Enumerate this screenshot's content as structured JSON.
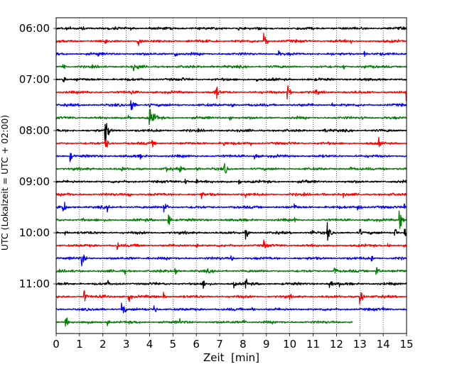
{
  "chart_data": {
    "type": "line",
    "title": "",
    "xlabel": "Zeit  [min]",
    "ylabel": "UTC (Lokalzeit = UTC + 02:00)",
    "xlim": [
      0,
      15
    ],
    "x_ticks": [
      "0",
      "1",
      "2",
      "3",
      "4",
      "5",
      "6",
      "7",
      "8",
      "9",
      "10",
      "11",
      "12",
      "13",
      "14",
      "15"
    ],
    "y_ticks": [
      "06:00",
      "07:00",
      "08:00",
      "09:00",
      "10:00",
      "11:00"
    ],
    "grid": "vertical dotted",
    "colors": [
      "#000000",
      "#ff0000",
      "#0000ff",
      "#008000"
    ],
    "series": [
      {
        "start": "06:00",
        "color": "#000000",
        "end_min": 15,
        "events": [
          [
            1.1,
            4
          ],
          [
            3.2,
            3
          ],
          [
            7.8,
            3
          ],
          [
            10.3,
            3
          ],
          [
            12.7,
            3
          ]
        ]
      },
      {
        "start": "06:15",
        "color": "#ff0000",
        "end_min": 15,
        "events": [
          [
            2.1,
            5
          ],
          [
            3.5,
            8
          ],
          [
            5.6,
            4
          ],
          [
            8.9,
            14
          ],
          [
            12.6,
            4
          ]
        ]
      },
      {
        "start": "06:30",
        "color": "#0000ff",
        "end_min": 15,
        "events": [
          [
            1.8,
            4
          ],
          [
            5.1,
            7
          ],
          [
            9.5,
            6
          ],
          [
            13.2,
            4
          ]
        ]
      },
      {
        "start": "06:45",
        "color": "#008000",
        "end_min": 15,
        "events": [
          [
            0.3,
            7
          ],
          [
            3.3,
            6
          ],
          [
            3.5,
            5
          ],
          [
            6.6,
            4
          ],
          [
            12.3,
            5
          ],
          [
            13.2,
            4
          ]
        ]
      },
      {
        "start": "07:00",
        "color": "#000000",
        "end_min": 15,
        "events": [
          [
            0.3,
            6
          ],
          [
            0.9,
            4
          ],
          [
            5.4,
            4
          ],
          [
            8.6,
            3
          ]
        ]
      },
      {
        "start": "07:15",
        "color": "#ff0000",
        "end_min": 15,
        "events": [
          [
            1.3,
            4
          ],
          [
            3.2,
            4
          ],
          [
            6.8,
            16
          ],
          [
            9.9,
            14
          ],
          [
            11.1,
            7
          ],
          [
            15.0,
            14
          ]
        ]
      },
      {
        "start": "07:30",
        "color": "#0000ff",
        "end_min": 15,
        "events": [
          [
            3.2,
            14
          ],
          [
            4.0,
            4
          ],
          [
            7.5,
            4
          ],
          [
            11.8,
            4
          ]
        ]
      },
      {
        "start": "07:45",
        "color": "#008000",
        "end_min": 15,
        "events": [
          [
            3.1,
            5
          ],
          [
            4.0,
            18
          ],
          [
            4.2,
            12
          ],
          [
            7.4,
            6
          ],
          [
            13.1,
            4
          ]
        ]
      },
      {
        "start": "08:00",
        "color": "#000000",
        "end_min": 15,
        "events": [
          [
            2.1,
            18
          ],
          [
            2.2,
            10
          ],
          [
            11.5,
            5
          ]
        ]
      },
      {
        "start": "08:15",
        "color": "#ff0000",
        "end_min": 15,
        "events": [
          [
            2.1,
            12
          ],
          [
            4.1,
            6
          ],
          [
            7.2,
            5
          ],
          [
            8.3,
            6
          ],
          [
            13.8,
            7
          ]
        ]
      },
      {
        "start": "08:30",
        "color": "#0000ff",
        "end_min": 15,
        "events": [
          [
            0.6,
            7
          ],
          [
            3.6,
            4
          ],
          [
            8.5,
            7
          ],
          [
            13.6,
            3
          ]
        ]
      },
      {
        "start": "08:45",
        "color": "#008000",
        "end_min": 15,
        "events": [
          [
            2.8,
            5
          ],
          [
            4.7,
            7
          ],
          [
            5.3,
            6
          ],
          [
            6.0,
            6
          ],
          [
            7.2,
            10
          ],
          [
            12.6,
            4
          ],
          [
            14.0,
            5
          ]
        ]
      },
      {
        "start": "09:00",
        "color": "#000000",
        "end_min": 15,
        "events": [
          [
            5.5,
            6
          ],
          [
            6.0,
            4
          ],
          [
            7.8,
            5
          ],
          [
            10.7,
            5
          ]
        ]
      },
      {
        "start": "09:15",
        "color": "#ff0000",
        "end_min": 15,
        "events": [
          [
            0.5,
            5
          ],
          [
            3.1,
            5
          ],
          [
            6.2,
            7
          ],
          [
            8.1,
            5
          ],
          [
            11.4,
            4
          ],
          [
            12.3,
            4
          ]
        ]
      },
      {
        "start": "09:30",
        "color": "#0000ff",
        "end_min": 15,
        "events": [
          [
            0.3,
            12
          ],
          [
            2.2,
            5
          ],
          [
            4.6,
            14
          ],
          [
            5.9,
            5
          ],
          [
            10.2,
            6
          ],
          [
            12.9,
            10
          ],
          [
            14.9,
            6
          ]
        ]
      },
      {
        "start": "09:45",
        "color": "#008000",
        "end_min": 15,
        "events": [
          [
            1.1,
            4
          ],
          [
            4.8,
            10
          ],
          [
            10.2,
            4
          ],
          [
            14.7,
            14
          ]
        ]
      },
      {
        "start": "10:00",
        "color": "#000000",
        "end_min": 15,
        "events": [
          [
            0.4,
            5
          ],
          [
            8.1,
            8
          ],
          [
            10.9,
            7
          ],
          [
            11.6,
            14
          ],
          [
            13.0,
            6
          ],
          [
            14.5,
            8
          ],
          [
            14.9,
            8
          ]
        ]
      },
      {
        "start": "10:15",
        "color": "#ff0000",
        "end_min": 15,
        "events": [
          [
            2.6,
            8
          ],
          [
            3.5,
            5
          ],
          [
            6.0,
            5
          ],
          [
            8.9,
            9
          ],
          [
            14.2,
            5
          ]
        ]
      },
      {
        "start": "10:30",
        "color": "#0000ff",
        "end_min": 15,
        "events": [
          [
            1.1,
            12
          ],
          [
            3.9,
            4
          ],
          [
            7.5,
            4
          ],
          [
            13.5,
            5
          ]
        ]
      },
      {
        "start": "10:45",
        "color": "#008000",
        "end_min": 15,
        "events": [
          [
            2.9,
            5
          ],
          [
            5.1,
            7
          ],
          [
            6.5,
            4
          ],
          [
            11.9,
            7
          ],
          [
            13.7,
            9
          ]
        ]
      },
      {
        "start": "11:00",
        "color": "#000000",
        "end_min": 15,
        "events": [
          [
            2.2,
            5
          ],
          [
            6.3,
            8
          ],
          [
            7.6,
            6
          ],
          [
            8.1,
            10
          ],
          [
            11.7,
            8
          ],
          [
            12.1,
            6
          ],
          [
            15.0,
            5
          ]
        ]
      },
      {
        "start": "11:15",
        "color": "#ff0000",
        "end_min": 15,
        "events": [
          [
            1.2,
            10
          ],
          [
            3.1,
            9
          ],
          [
            4.6,
            6
          ],
          [
            10.0,
            4
          ],
          [
            13.0,
            14
          ]
        ]
      },
      {
        "start": "11:30",
        "color": "#0000ff",
        "end_min": 15,
        "events": [
          [
            2.8,
            14
          ],
          [
            4.2,
            7
          ],
          [
            8.4,
            4
          ],
          [
            14.0,
            4
          ]
        ]
      },
      {
        "start": "11:45",
        "color": "#008000",
        "end_min": 12.7,
        "events": [
          [
            0.4,
            9
          ],
          [
            2.2,
            5
          ],
          [
            5.3,
            5
          ],
          [
            8.0,
            5
          ]
        ]
      }
    ]
  }
}
